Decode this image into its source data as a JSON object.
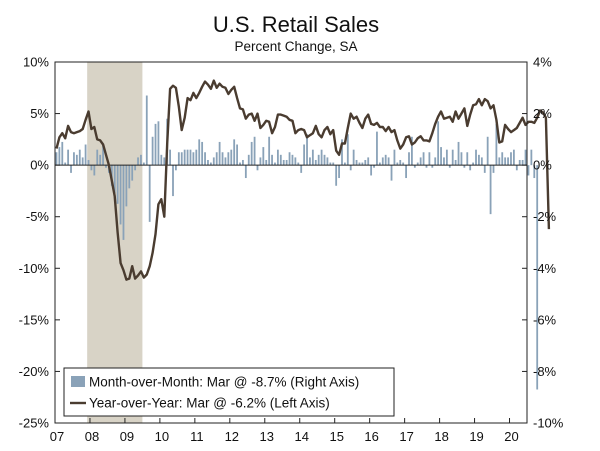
{
  "chart_data": {
    "type": "bar+line",
    "title": "U.S. Retail Sales",
    "subtitle": "Percent Change, SA",
    "x_axis": {
      "labels": [
        "07",
        "08",
        "09",
        "10",
        "11",
        "12",
        "13",
        "14",
        "15",
        "16",
        "17",
        "18",
        "19",
        "20"
      ],
      "start_year": 2007,
      "end_year": 2020.5
    },
    "y_left": {
      "min": -25,
      "max": 10,
      "step": 5,
      "tick_labels": [
        "10%",
        "5%",
        "0%",
        "-5%",
        "-10%",
        "-15%",
        "-20%",
        "-25%"
      ]
    },
    "y_right": {
      "min": -10,
      "max": 4,
      "step": 2,
      "tick_labels": [
        "4%",
        "2%",
        "0%",
        "-2%",
        "-4%",
        "-6%",
        "-8%",
        "-10%"
      ]
    },
    "recession": {
      "start": 2007.92,
      "end": 2009.5,
      "color": "#d8d3c6"
    },
    "colors": {
      "bars": "#8aa2b8",
      "line": "#4a3c30",
      "axis": "#222222"
    },
    "legend": [
      {
        "kind": "bar",
        "label": "Month-over-Month: Mar @ -8.7% (Right Axis)"
      },
      {
        "kind": "line",
        "label": "Year-over-Year: Mar @ -6.2% (Left Axis)"
      }
    ],
    "series": [
      {
        "name": "Month-over-Month",
        "axis": "right",
        "type": "bar",
        "start": "2007-01",
        "values": [
          0.5,
          0.7,
          0.9,
          0.1,
          0.6,
          -0.3,
          0.5,
          0.4,
          0.6,
          0.3,
          0.8,
          0.2,
          -0.2,
          -0.4,
          0.6,
          0.4,
          0.8,
          -0.1,
          -0.3,
          -0.8,
          -1.1,
          -1.5,
          -2.3,
          -2.9,
          -1.6,
          -0.9,
          -0.6,
          -0.2,
          0.3,
          0.4,
          0.1,
          2.7,
          -2.2,
          1.1,
          1.6,
          1.7,
          0.4,
          0.3,
          1.8,
          0.6,
          -1.2,
          -0.2,
          0.5,
          0.5,
          0.6,
          0.6,
          0.6,
          0.5,
          0.6,
          1.0,
          0.9,
          0.5,
          0.2,
          0.1,
          0.3,
          0.5,
          0.9,
          0.5,
          0.3,
          0.5,
          0.6,
          1.0,
          0.8,
          0.1,
          0.2,
          -0.5,
          0.4,
          0.9,
          1.1,
          -0.2,
          0.3,
          0.7,
          0.2,
          1.1,
          0.4,
          0.1,
          0.6,
          0.4,
          0.2,
          0.2,
          0.5,
          0.4,
          0.3,
          0.1,
          -0.3,
          0.8,
          1.2,
          0.3,
          0.6,
          0.2,
          0.4,
          0.6,
          0.4,
          0.3,
          0.1,
          0.1,
          -0.8,
          -0.5,
          1.0,
          0.1,
          1.2,
          -0.2,
          0.6,
          0.2,
          0.1,
          0.1,
          0.2,
          0.3,
          -0.4,
          -0.1,
          1.3,
          0.1,
          0.3,
          0.4,
          0.3,
          -0.6,
          0.6,
          0.1,
          0.2,
          0.1,
          -0.5,
          0.5,
          1.1,
          -0.1,
          0.1,
          0.3,
          0.5,
          -0.1,
          0.5,
          -0.1,
          0.3,
          1.7,
          0.7,
          0.3,
          0.6,
          -0.1,
          0.6,
          0.2,
          0.9,
          0.5,
          -0.1,
          0.5,
          -0.2,
          0.1,
          0.6,
          0.4,
          0.3,
          -0.3,
          1.1,
          -1.9,
          -0.3,
          1.6,
          0.3,
          0.5,
          0.3,
          0.3,
          0.5,
          0.6,
          -0.2,
          0.2,
          0.2,
          0.6,
          -0.4,
          0.6,
          -0.5,
          -8.7
        ]
      },
      {
        "name": "Year-over-Year",
        "axis": "left",
        "type": "line",
        "start": "2007-01",
        "values": [
          1.6,
          2.7,
          3.1,
          2.6,
          3.8,
          3.2,
          3.1,
          3.2,
          3.3,
          3.5,
          4.4,
          5.2,
          3.5,
          3.7,
          2.5,
          2.4,
          2.0,
          1.0,
          0.0,
          -1.5,
          -3.0,
          -6.5,
          -9.5,
          -10.2,
          -11.1,
          -11.0,
          -9.8,
          -11.0,
          -10.7,
          -10.3,
          -10.9,
          -10.6,
          -9.8,
          -8.5,
          -6.7,
          -3.8,
          -3.3,
          -5.0,
          2.1,
          7.4,
          7.7,
          7.5,
          5.7,
          3.4,
          4.6,
          6.5,
          6.3,
          7.0,
          6.5,
          7.0,
          7.6,
          8.1,
          7.8,
          7.4,
          8.2,
          7.5,
          7.9,
          7.6,
          7.5,
          6.9,
          7.3,
          7.6,
          6.5,
          5.5,
          5.4,
          4.5,
          4.9,
          5.0,
          4.3,
          5.0,
          3.6,
          3.9,
          4.3,
          4.2,
          3.1,
          3.7,
          4.9,
          4.9,
          4.8,
          4.7,
          4.4,
          4.3,
          3.1,
          3.4,
          3.5,
          3.4,
          2.7,
          2.9,
          3.1,
          3.8,
          3.0,
          2.7,
          3.4,
          3.7,
          3.0,
          3.4,
          1.4,
          1.0,
          2.1,
          2.1,
          3.6,
          5.0,
          4.5,
          4.7,
          4.1,
          3.6,
          4.5,
          4.9,
          4.0,
          3.9,
          4.1,
          3.7,
          3.7,
          3.3,
          3.7,
          3.2,
          3.4,
          2.4,
          1.6,
          2.0,
          2.7,
          2.8,
          2.0,
          2.2,
          2.6,
          2.8,
          2.4,
          2.4,
          2.3,
          3.1,
          4.0,
          4.7,
          5.2,
          4.5,
          4.6,
          4.7,
          4.2,
          5.2,
          4.5,
          5.0,
          5.5,
          3.8,
          4.9,
          5.8,
          5.9,
          6.4,
          5.8,
          6.4,
          6.2,
          5.5,
          5.8,
          4.4,
          2.2,
          2.3,
          3.9,
          3.5,
          3.2,
          3.4,
          3.6,
          4.1,
          4.6,
          3.9,
          4.2,
          4.2,
          4.1,
          4.6,
          5.3,
          5.1,
          4.6,
          -6.2
        ]
      }
    ]
  }
}
